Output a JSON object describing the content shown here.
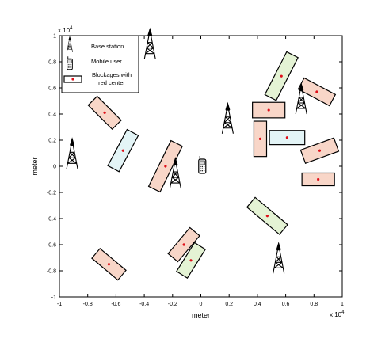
{
  "chart_data": {
    "type": "scatter",
    "xlabel": "meter",
    "ylabel": "meter",
    "xlim": [
      -1,
      1
    ],
    "ylim": [
      -1,
      1
    ],
    "axis_exponent_label": "x 10",
    "axis_exponent": "4",
    "grid": false,
    "legend_position": "top-left",
    "x_ticks": [
      {
        "v": -1,
        "label": "-1"
      },
      {
        "v": -0.8,
        "label": "-0.8"
      },
      {
        "v": -0.6,
        "label": "-0.6"
      },
      {
        "v": -0.4,
        "label": "-0.4"
      },
      {
        "v": -0.2,
        "label": "-0.2"
      },
      {
        "v": 0,
        "label": "0"
      },
      {
        "v": 0.2,
        "label": "0.2"
      },
      {
        "v": 0.4,
        "label": "0.4"
      },
      {
        "v": 0.6,
        "label": "0.6"
      },
      {
        "v": 0.8,
        "label": "0.8"
      },
      {
        "v": 1,
        "label": "1"
      }
    ],
    "y_ticks": [
      {
        "v": -1,
        "label": "-1"
      },
      {
        "v": -0.8,
        "label": "-0.8"
      },
      {
        "v": -0.6,
        "label": "-0.6"
      },
      {
        "v": -0.4,
        "label": "-0.4"
      },
      {
        "v": -0.2,
        "label": "-0.2"
      },
      {
        "v": 0,
        "label": "0"
      },
      {
        "v": 0.2,
        "label": "0.2"
      },
      {
        "v": 0.4,
        "label": "0.4"
      },
      {
        "v": 0.6,
        "label": "0.6"
      },
      {
        "v": 0.8,
        "label": "0.8"
      },
      {
        "v": 1,
        "label": "1"
      }
    ],
    "legend": [
      {
        "key": "base_station",
        "label": "Base station"
      },
      {
        "key": "mobile_user",
        "label": "Mobile user"
      },
      {
        "key": "blockage",
        "label": "Blockages with red center"
      }
    ],
    "base_stations": [
      {
        "x": -0.91,
        "y": -0.02
      },
      {
        "x": -0.36,
        "y": 0.82
      },
      {
        "x": -0.18,
        "y": -0.17
      },
      {
        "x": 0.19,
        "y": 0.25
      },
      {
        "x": 0.71,
        "y": 0.4
      },
      {
        "x": 0.55,
        "y": -0.82
      }
    ],
    "mobile_user": {
      "x": 0.01,
      "y": 0.0
    },
    "blockages": [
      {
        "x": -0.68,
        "y": 0.41,
        "length": 0.24,
        "width": 0.09,
        "angle_deg": -45,
        "color": "#f8d6c8"
      },
      {
        "x": -0.55,
        "y": 0.12,
        "length": 0.29,
        "width": 0.09,
        "angle_deg": 62,
        "color": "#e3f4f6"
      },
      {
        "x": -0.25,
        "y": 0.0,
        "length": 0.36,
        "width": 0.09,
        "angle_deg": 64,
        "color": "#f8d6c8"
      },
      {
        "x": -0.12,
        "y": -0.6,
        "length": 0.24,
        "width": 0.09,
        "angle_deg": 50,
        "color": "#f8d6c8"
      },
      {
        "x": -0.07,
        "y": -0.72,
        "length": 0.24,
        "width": 0.09,
        "angle_deg": 58,
        "color": "#e4f3d4"
      },
      {
        "x": -0.65,
        "y": -0.75,
        "length": 0.24,
        "width": 0.09,
        "angle_deg": -40,
        "color": "#f8d6c8"
      },
      {
        "x": 0.57,
        "y": 0.69,
        "length": 0.34,
        "width": 0.09,
        "angle_deg": 63,
        "color": "#e4f3d4"
      },
      {
        "x": 0.48,
        "y": 0.43,
        "length": 0.23,
        "width": 0.11,
        "angle_deg": 0,
        "color": "#f8d6c8"
      },
      {
        "x": 0.42,
        "y": 0.21,
        "length": 0.25,
        "width": 0.09,
        "angle_deg": 90,
        "color": "#f8d6c8"
      },
      {
        "x": 0.61,
        "y": 0.22,
        "length": 0.25,
        "width": 0.1,
        "angle_deg": 0,
        "color": "#e3f4f6"
      },
      {
        "x": 0.82,
        "y": 0.57,
        "length": 0.25,
        "width": 0.09,
        "angle_deg": -28,
        "color": "#f8d6c8"
      },
      {
        "x": 0.84,
        "y": 0.12,
        "length": 0.25,
        "width": 0.1,
        "angle_deg": 20,
        "color": "#f8d6c8"
      },
      {
        "x": 0.83,
        "y": -0.1,
        "length": 0.23,
        "width": 0.09,
        "angle_deg": 0,
        "color": "#f8d6c8"
      },
      {
        "x": 0.47,
        "y": -0.38,
        "length": 0.3,
        "width": 0.09,
        "angle_deg": -40,
        "color": "#e4f3d4"
      }
    ]
  }
}
